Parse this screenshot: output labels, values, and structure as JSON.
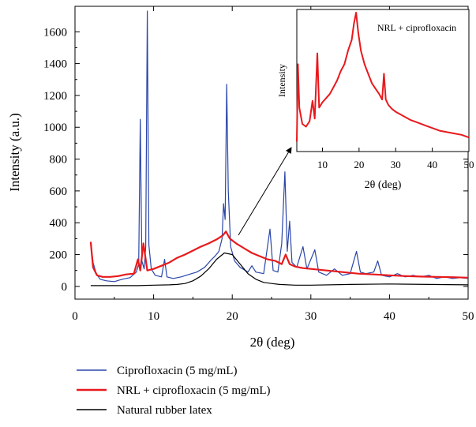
{
  "chart_data": [
    {
      "type": "line",
      "xlabel": "2θ (deg)",
      "ylabel": "Intensity (a.u.)",
      "xlim": [
        0,
        50
      ],
      "ylim": [
        -80,
        1760
      ],
      "xticks": [
        0,
        10,
        20,
        30,
        40,
        50
      ],
      "yticks": [
        0,
        200,
        400,
        600,
        800,
        1000,
        1200,
        1400,
        1600
      ],
      "grid": false,
      "legend_position": "bottom",
      "series": [
        {
          "name": "Ciprofloxacin (5 mg/mL)",
          "color": "#2a45a8",
          "points": [
            [
              2.0,
              270
            ],
            [
              2.3,
              150
            ],
            [
              2.7,
              80
            ],
            [
              3.2,
              45
            ],
            [
              4,
              35
            ],
            [
              5,
              30
            ],
            [
              6,
              45
            ],
            [
              7,
              55
            ],
            [
              7.8,
              90
            ],
            [
              8.1,
              140
            ],
            [
              8.3,
              1050
            ],
            [
              8.5,
              160
            ],
            [
              8.8,
              110
            ],
            [
              9.0,
              250
            ],
            [
              9.2,
              1730
            ],
            [
              9.4,
              260
            ],
            [
              9.7,
              110
            ],
            [
              10.2,
              70
            ],
            [
              11,
              60
            ],
            [
              11.4,
              170
            ],
            [
              11.7,
              60
            ],
            [
              12.5,
              50
            ],
            [
              13.5,
              60
            ],
            [
              14.5,
              75
            ],
            [
              15.5,
              90
            ],
            [
              16.5,
              120
            ],
            [
              17.2,
              160
            ],
            [
              17.8,
              190
            ],
            [
              18.3,
              220
            ],
            [
              18.7,
              300
            ],
            [
              18.9,
              520
            ],
            [
              19.1,
              420
            ],
            [
              19.3,
              1270
            ],
            [
              19.5,
              600
            ],
            [
              19.8,
              250
            ],
            [
              20.3,
              160
            ],
            [
              21,
              120
            ],
            [
              22,
              90
            ],
            [
              22.5,
              130
            ],
            [
              23,
              90
            ],
            [
              24,
              80
            ],
            [
              24.8,
              360
            ],
            [
              25.2,
              100
            ],
            [
              25.8,
              90
            ],
            [
              26.3,
              270
            ],
            [
              26.7,
              720
            ],
            [
              27.0,
              220
            ],
            [
              27.3,
              410
            ],
            [
              27.6,
              150
            ],
            [
              28.2,
              120
            ],
            [
              29,
              250
            ],
            [
              29.5,
              110
            ],
            [
              30.5,
              230
            ],
            [
              31,
              90
            ],
            [
              32,
              70
            ],
            [
              33,
              110
            ],
            [
              34,
              70
            ],
            [
              35,
              80
            ],
            [
              35.8,
              220
            ],
            [
              36.3,
              90
            ],
            [
              37,
              80
            ],
            [
              38,
              90
            ],
            [
              38.5,
              160
            ],
            [
              39,
              70
            ],
            [
              40,
              60
            ],
            [
              41,
              80
            ],
            [
              42,
              60
            ],
            [
              43,
              70
            ],
            [
              44,
              60
            ],
            [
              45,
              70
            ],
            [
              46,
              50
            ],
            [
              47,
              60
            ],
            [
              48,
              50
            ],
            [
              49,
              55
            ],
            [
              50,
              50
            ]
          ]
        },
        {
          "name": "NRL + ciprofloxacin (5 mg/mL)",
          "color": "#e8191c",
          "points": [
            [
              2.0,
              280
            ],
            [
              2.3,
              120
            ],
            [
              2.8,
              70
            ],
            [
              3.5,
              60
            ],
            [
              4.5,
              60
            ],
            [
              5.5,
              65
            ],
            [
              6.5,
              75
            ],
            [
              7.5,
              80
            ],
            [
              8.0,
              170
            ],
            [
              8.3,
              100
            ],
            [
              8.7,
              270
            ],
            [
              9.2,
              100
            ],
            [
              10,
              110
            ],
            [
              11,
              130
            ],
            [
              12,
              150
            ],
            [
              13,
              180
            ],
            [
              14,
              200
            ],
            [
              15,
              225
            ],
            [
              16,
              250
            ],
            [
              17,
              270
            ],
            [
              18,
              295
            ],
            [
              18.8,
              320
            ],
            [
              19.2,
              345
            ],
            [
              19.7,
              300
            ],
            [
              20.5,
              270
            ],
            [
              21.5,
              240
            ],
            [
              22.5,
              210
            ],
            [
              23.5,
              190
            ],
            [
              24.5,
              170
            ],
            [
              25.5,
              160
            ],
            [
              26.3,
              140
            ],
            [
              26.8,
              200
            ],
            [
              27.3,
              140
            ],
            [
              28,
              125
            ],
            [
              29,
              115
            ],
            [
              30,
              110
            ],
            [
              32,
              100
            ],
            [
              34,
              90
            ],
            [
              36,
              80
            ],
            [
              38,
              75
            ],
            [
              40,
              70
            ],
            [
              42,
              65
            ],
            [
              44,
              62
            ],
            [
              46,
              60
            ],
            [
              48,
              58
            ],
            [
              50,
              55
            ]
          ]
        },
        {
          "name": "Natural rubber latex",
          "color": "#000000",
          "points": [
            [
              2.0,
              5
            ],
            [
              5,
              5
            ],
            [
              8,
              5
            ],
            [
              10,
              8
            ],
            [
              12,
              10
            ],
            [
              13,
              12
            ],
            [
              14,
              18
            ],
            [
              15,
              35
            ],
            [
              16,
              65
            ],
            [
              17,
              110
            ],
            [
              18,
              170
            ],
            [
              19,
              210
            ],
            [
              20,
              200
            ],
            [
              21,
              140
            ],
            [
              22,
              80
            ],
            [
              23,
              45
            ],
            [
              24,
              25
            ],
            [
              25,
              18
            ],
            [
              26,
              12
            ],
            [
              28,
              8
            ],
            [
              30,
              8
            ],
            [
              35,
              12
            ],
            [
              40,
              15
            ],
            [
              45,
              12
            ],
            [
              50,
              10
            ]
          ]
        }
      ]
    },
    {
      "type": "line",
      "title": "NRL + ciprofloxacin",
      "xlabel": "2θ (deg)",
      "ylabel": "Intensity",
      "xlim": [
        3,
        50
      ],
      "ylim": [
        0,
        1
      ],
      "xticks": [
        10,
        20,
        30,
        40,
        50
      ],
      "series": [
        {
          "color": "#e8191c",
          "points": [
            [
              3,
              0.05
            ],
            [
              3.3,
              0.62
            ],
            [
              3.7,
              0.3
            ],
            [
              4.5,
              0.18
            ],
            [
              5.5,
              0.16
            ],
            [
              6.5,
              0.2
            ],
            [
              7.3,
              0.35
            ],
            [
              7.9,
              0.22
            ],
            [
              8.6,
              0.7
            ],
            [
              9.1,
              0.3
            ],
            [
              10,
              0.34
            ],
            [
              11,
              0.37
            ],
            [
              12,
              0.4
            ],
            [
              13,
              0.45
            ],
            [
              14,
              0.5
            ],
            [
              15,
              0.57
            ],
            [
              16,
              0.62
            ],
            [
              17,
              0.72
            ],
            [
              18,
              0.8
            ],
            [
              18.6,
              0.92
            ],
            [
              19.2,
              1.0
            ],
            [
              19.8,
              0.85
            ],
            [
              20.5,
              0.72
            ],
            [
              21.5,
              0.62
            ],
            [
              22.5,
              0.55
            ],
            [
              23.5,
              0.48
            ],
            [
              24.5,
              0.44
            ],
            [
              25.5,
              0.4
            ],
            [
              26.3,
              0.36
            ],
            [
              26.8,
              0.55
            ],
            [
              27.3,
              0.36
            ],
            [
              28,
              0.32
            ],
            [
              29,
              0.29
            ],
            [
              30,
              0.27
            ],
            [
              32,
              0.24
            ],
            [
              34,
              0.21
            ],
            [
              36,
              0.19
            ],
            [
              38,
              0.17
            ],
            [
              40,
              0.15
            ],
            [
              42,
              0.13
            ],
            [
              44,
              0.12
            ],
            [
              46,
              0.11
            ],
            [
              48,
              0.1
            ],
            [
              50,
              0.08
            ]
          ]
        }
      ]
    }
  ]
}
